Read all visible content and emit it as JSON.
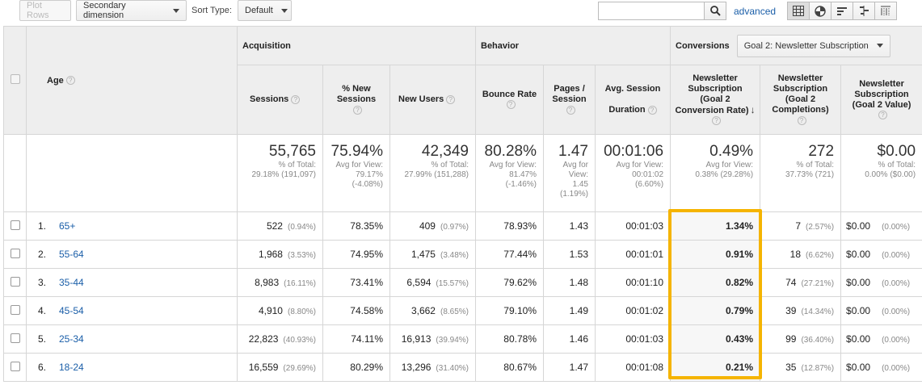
{
  "toolbar": {
    "plot_rows": "Plot Rows",
    "secondary_dimension": "Secondary dimension",
    "sort_type_label": "Sort Type:",
    "sort_type_value": "Default",
    "search_value": "",
    "advanced": "advanced",
    "view_icons": [
      "data-table-icon",
      "pie-chart-icon",
      "bar-performance-icon",
      "comparison-icon",
      "pivot-icon"
    ]
  },
  "header": {
    "dimension": "Age",
    "acquisition": "Acquisition",
    "behavior": "Behavior",
    "conversions": "Conversions",
    "goal_select": "Goal 2: Newsletter Subscription",
    "metrics": {
      "sessions": "Sessions",
      "new_sessions_1": "% New",
      "new_sessions_2": "Sessions",
      "new_users": "New Users",
      "bounce_rate": "Bounce Rate",
      "pages_1": "Pages /",
      "pages_2": "Session",
      "duration_1": "Avg. Session",
      "duration_2": "Duration",
      "conv_rate_1": "Newsletter",
      "conv_rate_2": "Subscription",
      "conv_rate_3": "(Goal 2",
      "conv_rate_4": "Conversion Rate)",
      "completions_1": "Newsletter",
      "completions_2": "Subscription",
      "completions_3": "(Goal 2",
      "completions_4": "Completions)",
      "value_1": "Newsletter",
      "value_2": "Subscription",
      "value_3": "(Goal 2 Value)"
    }
  },
  "totals": {
    "sessions": {
      "big": "55,765",
      "l1": "% of Total:",
      "l2": "29.18% (191,097)"
    },
    "new_sessions": {
      "big": "75.94%",
      "l1": "Avg for View:",
      "l2": "79.17%",
      "l3": "(-4.08%)"
    },
    "new_users": {
      "big": "42,349",
      "l1": "% of Total:",
      "l2": "27.99% (151,288)"
    },
    "bounce_rate": {
      "big": "80.28%",
      "l1": "Avg for View:",
      "l2": "81.47%",
      "l3": "(-1.46%)"
    },
    "pages": {
      "big": "1.47",
      "l1": "Avg for",
      "l2": "View:",
      "l3": "1.45",
      "l4": "(1.19%)"
    },
    "duration": {
      "big": "00:01:06",
      "l1": "Avg for View:",
      "l2": "00:01:02",
      "l3": "(6.60%)"
    },
    "conv_rate": {
      "big": "0.49%",
      "l1": "Avg for View:",
      "l2": "0.38% (29.28%)"
    },
    "completions": {
      "big": "272",
      "l1": "% of Total:",
      "l2": "37.73% (721)"
    },
    "value": {
      "big": "$0.00",
      "l1": "% of Total:",
      "l2": "0.00% ($0.00)"
    }
  },
  "rows": [
    {
      "idx": "1.",
      "age": "65+",
      "sessions": "522",
      "sessions_pct": "(0.94%)",
      "new_sessions": "78.35%",
      "new_users": "409",
      "new_users_pct": "(0.97%)",
      "bounce": "78.93%",
      "pages": "1.43",
      "duration": "00:01:03",
      "conv_rate": "1.34%",
      "completions": "7",
      "completions_pct": "(2.57%)",
      "value": "$0.00",
      "value_pct": "(0.00%)"
    },
    {
      "idx": "2.",
      "age": "55-64",
      "sessions": "1,968",
      "sessions_pct": "(3.53%)",
      "new_sessions": "74.95%",
      "new_users": "1,475",
      "new_users_pct": "(3.48%)",
      "bounce": "77.44%",
      "pages": "1.53",
      "duration": "00:01:01",
      "conv_rate": "0.91%",
      "completions": "18",
      "completions_pct": "(6.62%)",
      "value": "$0.00",
      "value_pct": "(0.00%)"
    },
    {
      "idx": "3.",
      "age": "35-44",
      "sessions": "8,983",
      "sessions_pct": "(16.11%)",
      "new_sessions": "73.41%",
      "new_users": "6,594",
      "new_users_pct": "(15.57%)",
      "bounce": "79.62%",
      "pages": "1.48",
      "duration": "00:01:10",
      "conv_rate": "0.82%",
      "completions": "74",
      "completions_pct": "(27.21%)",
      "value": "$0.00",
      "value_pct": "(0.00%)"
    },
    {
      "idx": "4.",
      "age": "45-54",
      "sessions": "4,910",
      "sessions_pct": "(8.80%)",
      "new_sessions": "74.58%",
      "new_users": "3,662",
      "new_users_pct": "(8.65%)",
      "bounce": "79.10%",
      "pages": "1.49",
      "duration": "00:01:02",
      "conv_rate": "0.79%",
      "completions": "39",
      "completions_pct": "(14.34%)",
      "value": "$0.00",
      "value_pct": "(0.00%)"
    },
    {
      "idx": "5.",
      "age": "25-34",
      "sessions": "22,823",
      "sessions_pct": "(40.93%)",
      "new_sessions": "74.11%",
      "new_users": "16,913",
      "new_users_pct": "(39.94%)",
      "bounce": "80.78%",
      "pages": "1.46",
      "duration": "00:01:03",
      "conv_rate": "0.43%",
      "completions": "99",
      "completions_pct": "(36.40%)",
      "value": "$0.00",
      "value_pct": "(0.00%)"
    },
    {
      "idx": "6.",
      "age": "18-24",
      "sessions": "16,559",
      "sessions_pct": "(29.69%)",
      "new_sessions": "80.29%",
      "new_users": "13,296",
      "new_users_pct": "(31.40%)",
      "bounce": "80.67%",
      "pages": "1.47",
      "duration": "00:01:08",
      "conv_rate": "0.21%",
      "completions": "35",
      "completions_pct": "(12.87%)",
      "value": "$0.00",
      "value_pct": "(0.00%)"
    }
  ],
  "colors": {
    "accent_link": "#1a5ea8",
    "highlight": "#f5b400",
    "header_bg": "#eeeeee"
  }
}
